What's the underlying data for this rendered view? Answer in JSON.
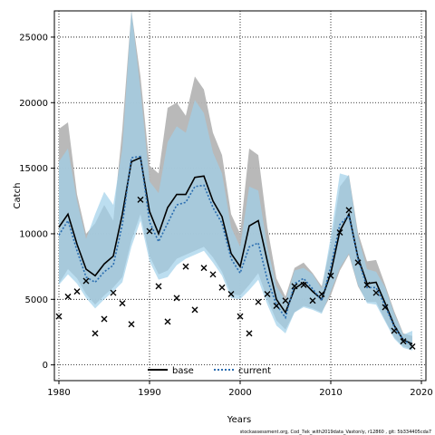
{
  "chart_data": {
    "type": "line",
    "xlabel": "Years",
    "ylabel": "Catch",
    "xlim": [
      1979.5,
      2020.5
    ],
    "ylim": [
      -1200,
      27000
    ],
    "xticks": [
      1980,
      1990,
      2000,
      2010,
      2020
    ],
    "yticks": [
      0,
      5000,
      10000,
      15000,
      20000,
      25000
    ],
    "grid": true,
    "legend_position": "bottom-center",
    "years": [
      1980,
      1981,
      1982,
      1983,
      1984,
      1985,
      1986,
      1987,
      1988,
      1989,
      1990,
      1991,
      1992,
      1993,
      1994,
      1995,
      1996,
      1997,
      1998,
      1999,
      2000,
      2001,
      2002,
      2003,
      2004,
      2005,
      2006,
      2007,
      2008,
      2009,
      2010,
      2011,
      2012,
      2013,
      2014,
      2015,
      2016,
      2017,
      2018,
      2019
    ],
    "series": [
      {
        "name": "base",
        "color": "#000000",
        "band_color": "#b5b5b5",
        "values": [
          10500,
          11500,
          9200,
          7300,
          6800,
          7700,
          8300,
          11500,
          15500,
          15800,
          11700,
          10000,
          12000,
          13000,
          13000,
          14300,
          14400,
          12500,
          11300,
          8500,
          7500,
          10600,
          11000,
          7900,
          5000,
          4000,
          5800,
          6300,
          5600,
          5000,
          7000,
          10200,
          11500,
          8200,
          6200,
          6300,
          4700,
          3000,
          1900,
          1600
        ],
        "lower": [
          6200,
          7300,
          6600,
          5400,
          4600,
          5300,
          5900,
          6700,
          9500,
          11500,
          8300,
          6900,
          7200,
          8100,
          8400,
          8700,
          9000,
          8200,
          7100,
          5400,
          5300,
          6100,
          7000,
          5000,
          3400,
          2700,
          4000,
          4500,
          4300,
          4000,
          5300,
          7200,
          8400,
          6000,
          4800,
          4800,
          3400,
          2100,
          1400,
          1200
        ],
        "upper": [
          18000,
          18500,
          13000,
          10000,
          10800,
          12200,
          11000,
          18000,
          27000,
          22000,
          15200,
          14600,
          19600,
          20000,
          19000,
          22000,
          21000,
          17700,
          16000,
          11500,
          10000,
          16500,
          16000,
          10500,
          6600,
          5200,
          7400,
          7800,
          7000,
          6000,
          9200,
          13600,
          14500,
          10100,
          7900,
          8000,
          6100,
          4100,
          2400,
          2200
        ]
      },
      {
        "name": "current",
        "color": "#2a6db0",
        "band_color": "#9fd0ea",
        "values": [
          9900,
          11000,
          8700,
          6700,
          6300,
          7100,
          7600,
          10700,
          15800,
          15900,
          10900,
          9400,
          10800,
          12200,
          12400,
          13600,
          13700,
          12000,
          10800,
          8100,
          7000,
          9000,
          9300,
          6500,
          4600,
          3600,
          6200,
          6600,
          5800,
          4900,
          7500,
          10700,
          11400,
          8100,
          5900,
          5900,
          4500,
          2900,
          1900,
          1500
        ],
        "lower": [
          6100,
          6900,
          6200,
          5100,
          4300,
          5000,
          5600,
          6300,
          9000,
          11000,
          7900,
          6500,
          6700,
          7600,
          8100,
          8400,
          8700,
          7800,
          6800,
          5100,
          5000,
          5700,
          6500,
          4600,
          3000,
          2400,
          4000,
          4400,
          4200,
          3900,
          5600,
          7400,
          8500,
          6100,
          4700,
          4600,
          3300,
          2000,
          1300,
          1100
        ],
        "upper": [
          15500,
          16500,
          12500,
          9600,
          11500,
          13200,
          12200,
          16500,
          27000,
          21000,
          14000,
          13100,
          17000,
          18200,
          17700,
          20200,
          19200,
          16200,
          14600,
          10500,
          9000,
          13600,
          13300,
          9000,
          6000,
          4900,
          7200,
          7400,
          6900,
          5800,
          9800,
          14600,
          14400,
          9800,
          7300,
          7100,
          5900,
          3900,
          2300,
          2600
        ]
      }
    ],
    "observed": {
      "marker": "x",
      "color": "#000000",
      "values": [
        3700,
        5200,
        5600,
        6400,
        2400,
        3500,
        5500,
        4700,
        3100,
        12600,
        10200,
        6000,
        3300,
        5100,
        7500,
        4200,
        7400,
        6900,
        5900,
        5400,
        3700,
        2400,
        4800,
        5400,
        4500,
        4900,
        6000,
        6100,
        4900,
        5400,
        6800,
        10100,
        11800,
        7800,
        6100,
        5500,
        4400,
        2600,
        1800,
        1400
      ]
    },
    "footer": "stockassessment.org, Cod_7ek_with2019data_Vastonly, r12860 , git: 5b334405cda7"
  }
}
